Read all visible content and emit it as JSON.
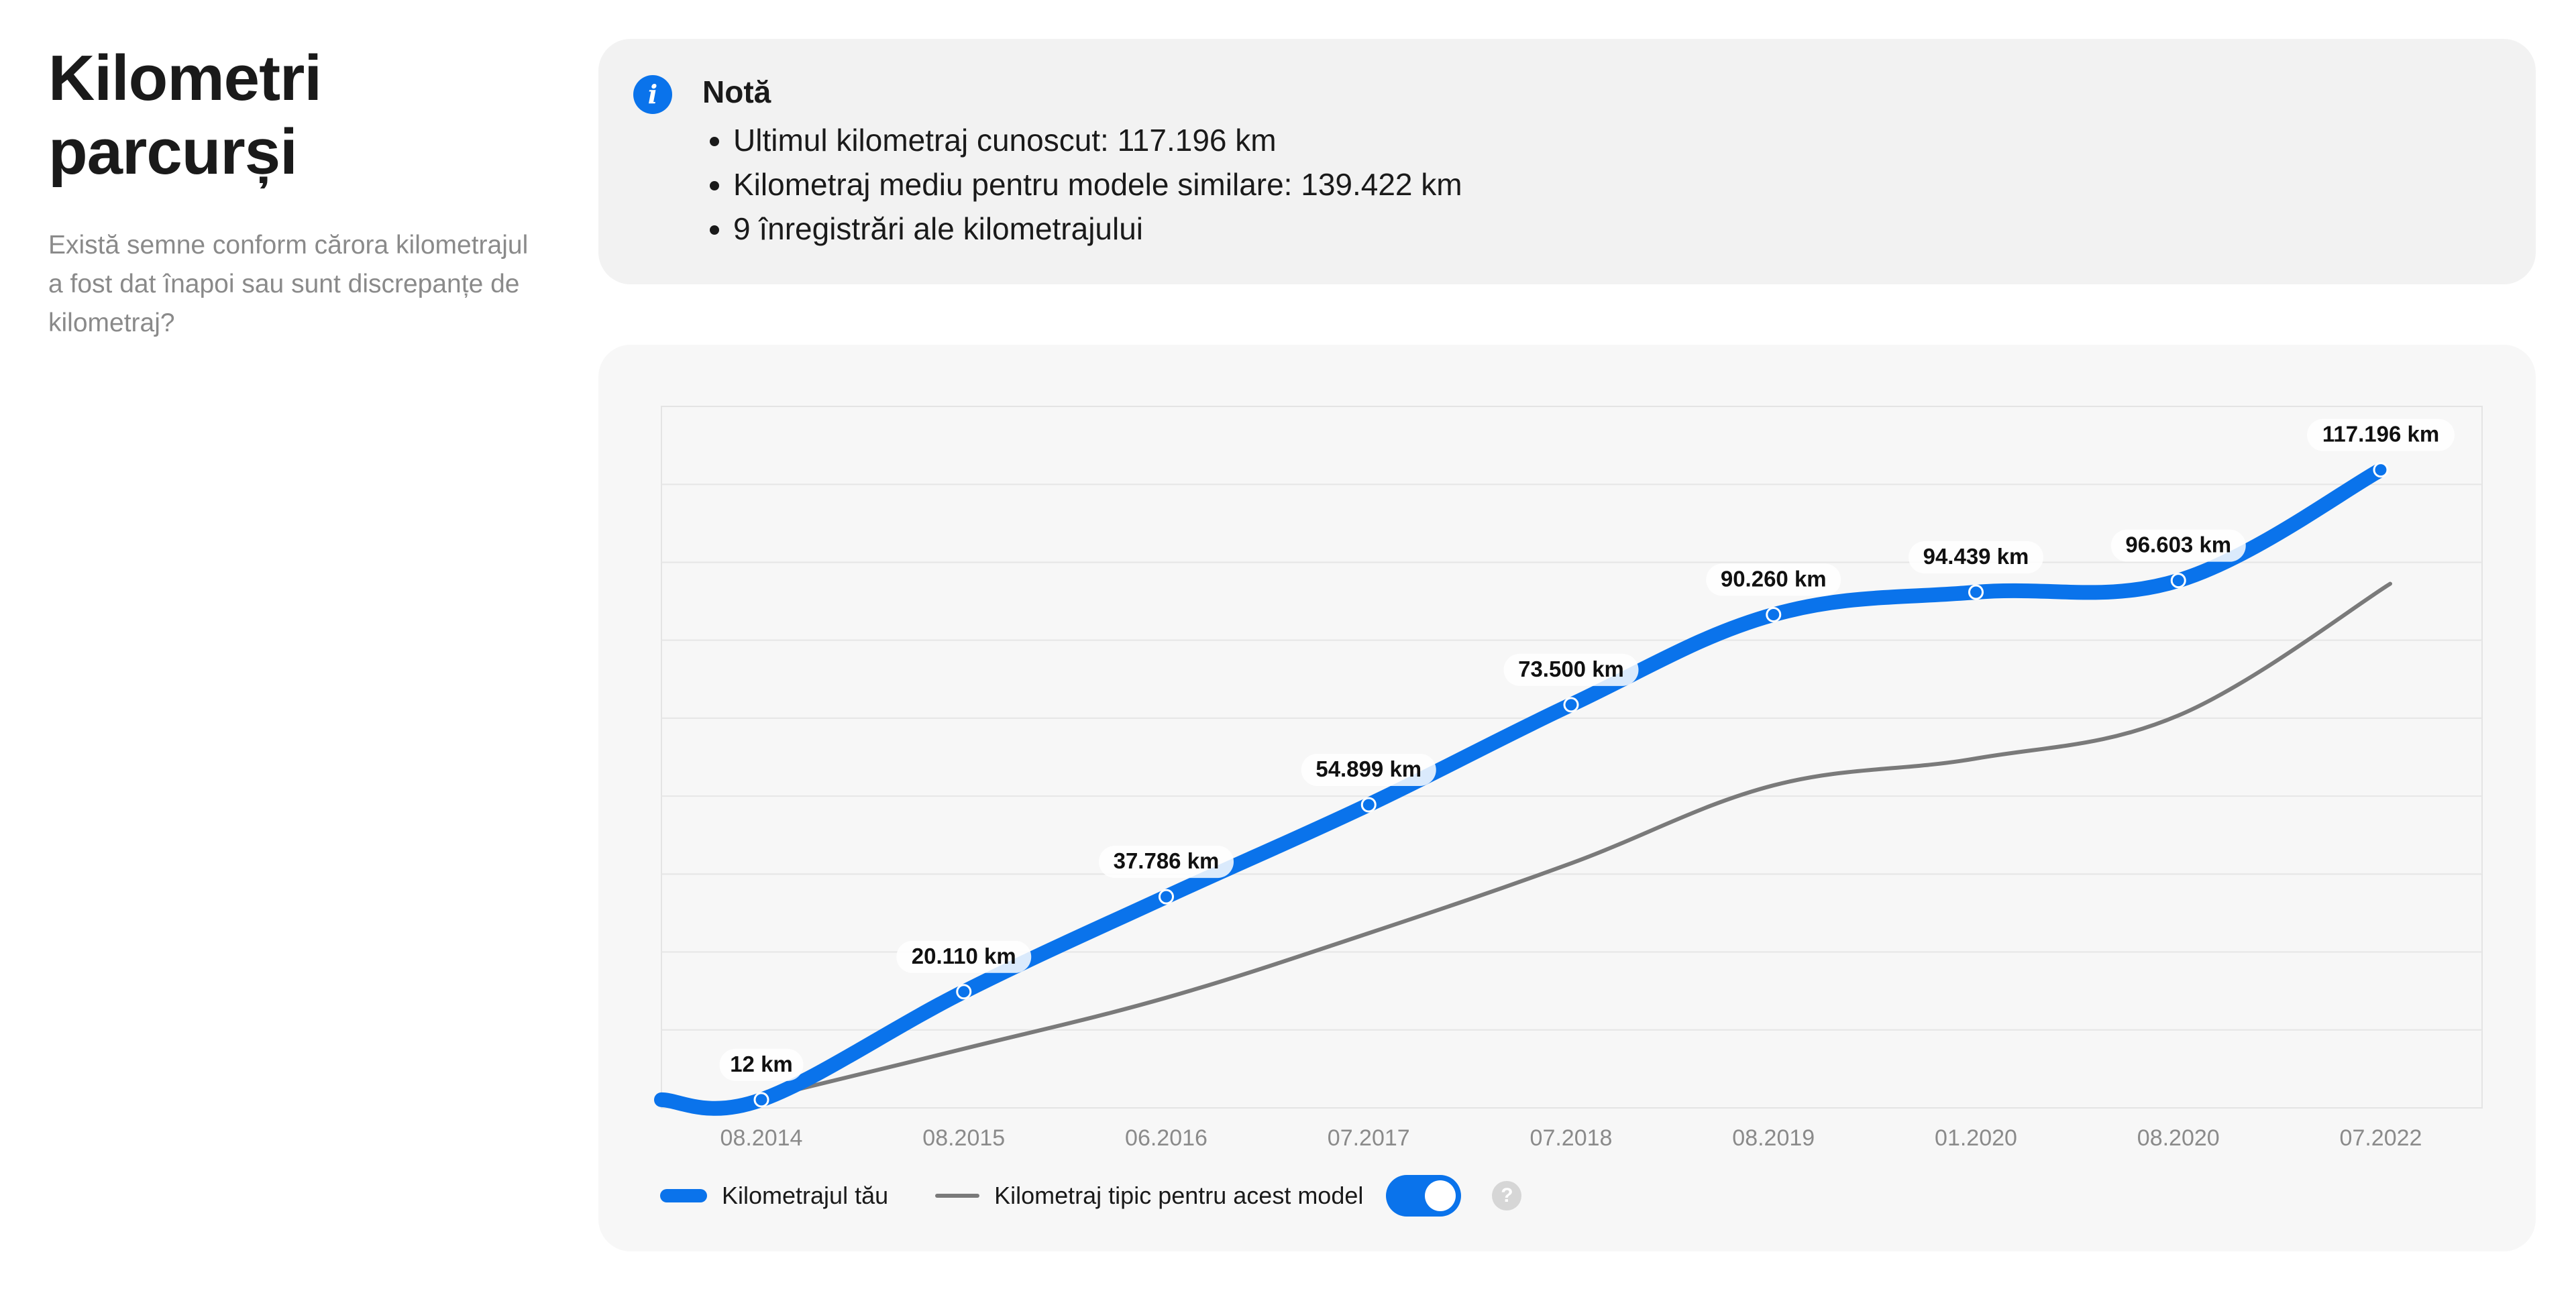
{
  "header": {
    "title": "Kilometri parcurși",
    "description": "Există semne conform cărora kilometrajul a fost dat înapoi sau sunt discrepanțe de kilometraj?"
  },
  "note": {
    "icon": "info-icon",
    "title": "Notă",
    "items": [
      "Ultimul kilometraj cunoscut: 117.196 km",
      "Kilometraj mediu pentru modele similare: 139.422 km",
      "9 înregistrări ale kilometrajului"
    ]
  },
  "chart_data": {
    "type": "line",
    "categories": [
      "08.2014",
      "08.2015",
      "06.2016",
      "07.2017",
      "07.2018",
      "08.2019",
      "01.2020",
      "08.2020",
      "07.2022"
    ],
    "series": [
      {
        "name": "Kilometrajul tău",
        "color": "#0a73eb",
        "values": [
          12,
          20110,
          37786,
          54899,
          73500,
          90260,
          94439,
          96603,
          117196
        ],
        "labels": [
          "12 km",
          "20.110 km",
          "37.786 km",
          "54.899 km",
          "73.500 km",
          "90.260 km",
          "94.439 km",
          "96.603 km",
          "117.196 km"
        ]
      },
      {
        "name": "Kilometraj tipic pentru acest model",
        "color": "#7a7a7a",
        "values": [
          300,
          9500,
          19000,
          31000,
          44000,
          58500,
          63500,
          71500,
          96000
        ]
      }
    ],
    "ylim": [
      -1500,
      129000
    ],
    "grid": true,
    "legend_position": "bottom-left"
  },
  "legend": {
    "series1_label": "Kilometrajul tău",
    "series2_label": "Kilometraj tipic pentru acest model",
    "toggle_on": true,
    "help_label": "?"
  }
}
